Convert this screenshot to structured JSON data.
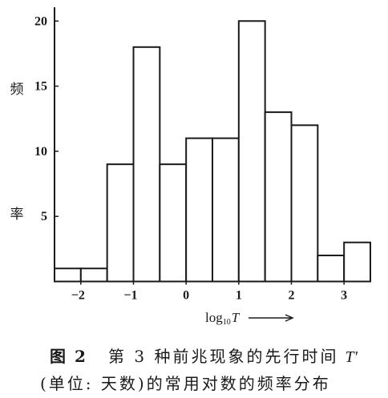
{
  "figure": {
    "caption": {
      "label": "图 2",
      "line1_text": "第 3 种前兆现象的先行时间",
      "line1_symbol": "T'",
      "line2_text": "(单位: 天数)的常用对数的频率分布"
    }
  },
  "chart_data": {
    "type": "bar",
    "bin_edges": [
      -2.5,
      -2.0,
      -1.5,
      -1.0,
      -0.5,
      0.0,
      0.5,
      1.0,
      1.5,
      2.0,
      2.5,
      3.0,
      3.5
    ],
    "values": [
      1,
      1,
      9,
      18,
      9,
      11,
      11,
      20,
      13,
      12,
      2,
      3
    ],
    "xlabel": {
      "prefix": "log",
      "subscript": "10",
      "symbol": "T"
    },
    "ylabel": "频率",
    "xlim": [
      -2.5,
      3.5
    ],
    "ylim": [
      0,
      21
    ],
    "xticks": [
      -2,
      -1,
      0,
      1,
      2,
      3
    ],
    "xtick_labels": [
      "−2",
      "−1",
      "0",
      "1",
      "2",
      "3"
    ],
    "yticks": [
      5,
      10,
      15,
      20
    ],
    "ytick_labels": [
      "5",
      "10",
      "15",
      "20"
    ],
    "grid": false,
    "colors": {
      "bar_fill": "#ffffff",
      "bar_edge": "#1a1a1a",
      "axis": "#1a1a1a"
    }
  }
}
